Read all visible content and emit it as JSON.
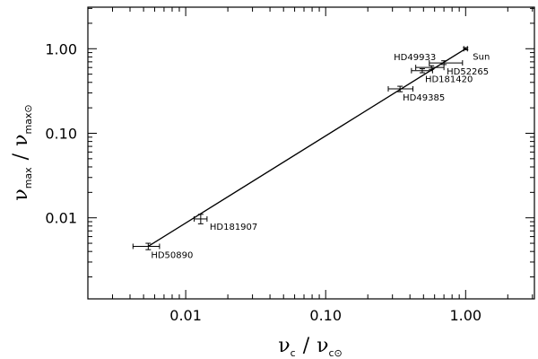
{
  "chart_data": {
    "type": "scatter",
    "xscale": "log",
    "yscale": "log",
    "xlim": [
      0.002,
      3.1
    ],
    "ylim": [
      0.0011,
      3.1
    ],
    "xticks": [
      {
        "value": 0.01,
        "label": "0.01"
      },
      {
        "value": 0.1,
        "label": "0.10"
      },
      {
        "value": 1,
        "label": "1.00"
      }
    ],
    "yticks": [
      {
        "value": 0.01,
        "label": "0.01"
      },
      {
        "value": 0.1,
        "label": "0.10"
      },
      {
        "value": 1,
        "label": "1.00"
      }
    ],
    "xlabel": {
      "nu": "ν",
      "sub": "c",
      "slash": "/",
      "nu2": "ν",
      "sub2": "c⊙"
    },
    "ylabel": {
      "nu": "ν",
      "sub": "max",
      "slash": "/",
      "nu2": "ν",
      "sub2": "max⊙"
    },
    "grid": false,
    "points": [
      {
        "label": "HD50890",
        "x": 0.0054,
        "y": 0.0046,
        "xerr": [
          0.0042,
          0.0065
        ],
        "yerr": [
          0.0042,
          0.005
        ],
        "label_pos": "below-right"
      },
      {
        "label": "HD181907",
        "x": 0.0128,
        "y": 0.0097,
        "xerr": [
          0.0115,
          0.0142
        ],
        "yerr": [
          0.0085,
          0.011
        ],
        "label_pos": "right"
      },
      {
        "label": "HD49385",
        "x": 0.34,
        "y": 0.335,
        "xerr": [
          0.28,
          0.42
        ],
        "yerr": [
          0.31,
          0.36
        ],
        "label_pos": "below-right"
      },
      {
        "label": "HD181420",
        "x": 0.49,
        "y": 0.55,
        "xerr": [
          0.41,
          0.58
        ],
        "yerr": [
          0.52,
          0.58
        ],
        "label_pos": "below-right"
      },
      {
        "label": "HD49933",
        "x": 0.57,
        "y": 0.6,
        "xerr": [
          0.44,
          0.7
        ],
        "yerr": [
          0.57,
          0.63
        ],
        "label_pos": "above-left"
      },
      {
        "label": "HD52265",
        "x": 0.7,
        "y": 0.68,
        "xerr": [
          0.55,
          0.95
        ],
        "yerr": [
          0.65,
          0.72
        ],
        "label_pos": "below-right"
      },
      {
        "label": "Sun",
        "x": 1.0,
        "y": 1.0,
        "xerr": [
          0.97,
          1.03
        ],
        "yerr": [
          0.97,
          1.03
        ],
        "label_pos": "right"
      }
    ],
    "fit_line": {
      "x": [
        0.0054,
        1.0
      ],
      "y": [
        0.0046,
        1.0
      ]
    }
  }
}
